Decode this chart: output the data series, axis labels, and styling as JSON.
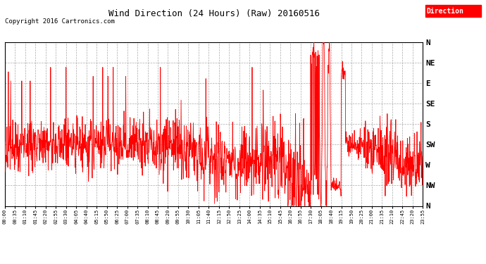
{
  "title": "Wind Direction (24 Hours) (Raw) 20160516",
  "copyright": "Copyright 2016 Cartronics.com",
  "legend_label": "Direction",
  "legend_bg": "#FF0000",
  "legend_text_color": "#FFFFFF",
  "background_color": "#FFFFFF",
  "grid_color": "#AAAAAA",
  "line_color_red": "#FF0000",
  "line_color_dark": "#222222",
  "ytick_labels_top_to_bottom": [
    "N",
    "NW",
    "W",
    "SW",
    "S",
    "SE",
    "E",
    "NE",
    "N"
  ],
  "ytick_values_top_to_bottom": [
    360,
    315,
    270,
    225,
    180,
    135,
    90,
    45,
    0
  ],
  "ylim_min": 0,
  "ylim_max": 360,
  "x_tick_interval_minutes": 35
}
